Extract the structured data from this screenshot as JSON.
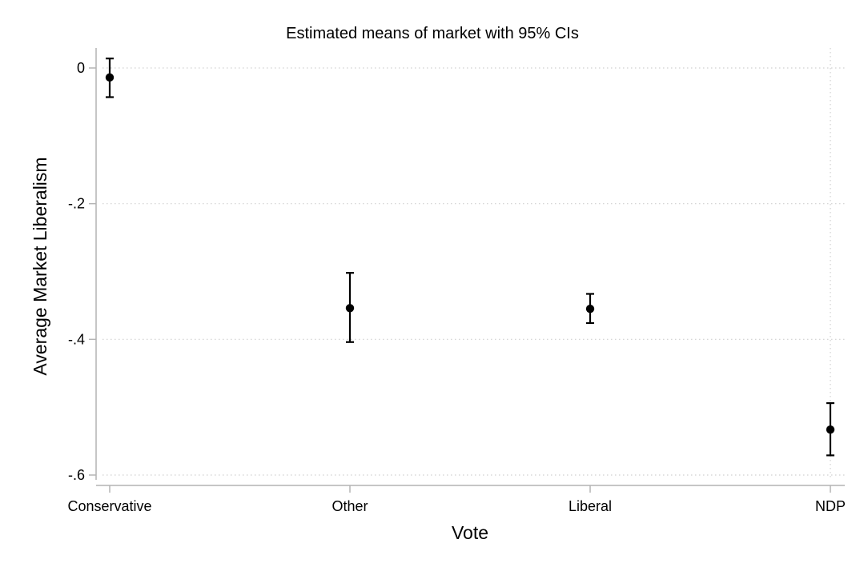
{
  "chart_data": {
    "type": "scatter",
    "subtype": "point-estimate-with-confidence-intervals",
    "title": "Estimated means of market with 95% CIs",
    "xlabel": "Vote",
    "ylabel": "Average Market Liberalism",
    "categories": [
      "Conservative",
      "Other",
      "Liberal",
      "NDP"
    ],
    "points": [
      {
        "category": "Conservative",
        "mean": -0.014,
        "lower": -0.043,
        "upper": 0.014
      },
      {
        "category": "Other",
        "mean": -0.354,
        "lower": -0.404,
        "upper": -0.302
      },
      {
        "category": "Liberal",
        "mean": -0.355,
        "lower": -0.376,
        "upper": -0.333
      },
      {
        "category": "NDP",
        "mean": -0.533,
        "lower": -0.571,
        "upper": -0.494
      }
    ],
    "yticks": [
      0,
      -0.2,
      -0.4,
      -0.6
    ],
    "ytick_labels": [
      "0",
      "-.2",
      "-.4",
      "-.6"
    ],
    "ylim": [
      -0.6,
      0
    ],
    "grid": true,
    "grid_style": "dotted",
    "legend": "none",
    "colors": {
      "marker": "#000000",
      "axis": "#b4b4b4",
      "grid": "#d0d0d0"
    }
  }
}
